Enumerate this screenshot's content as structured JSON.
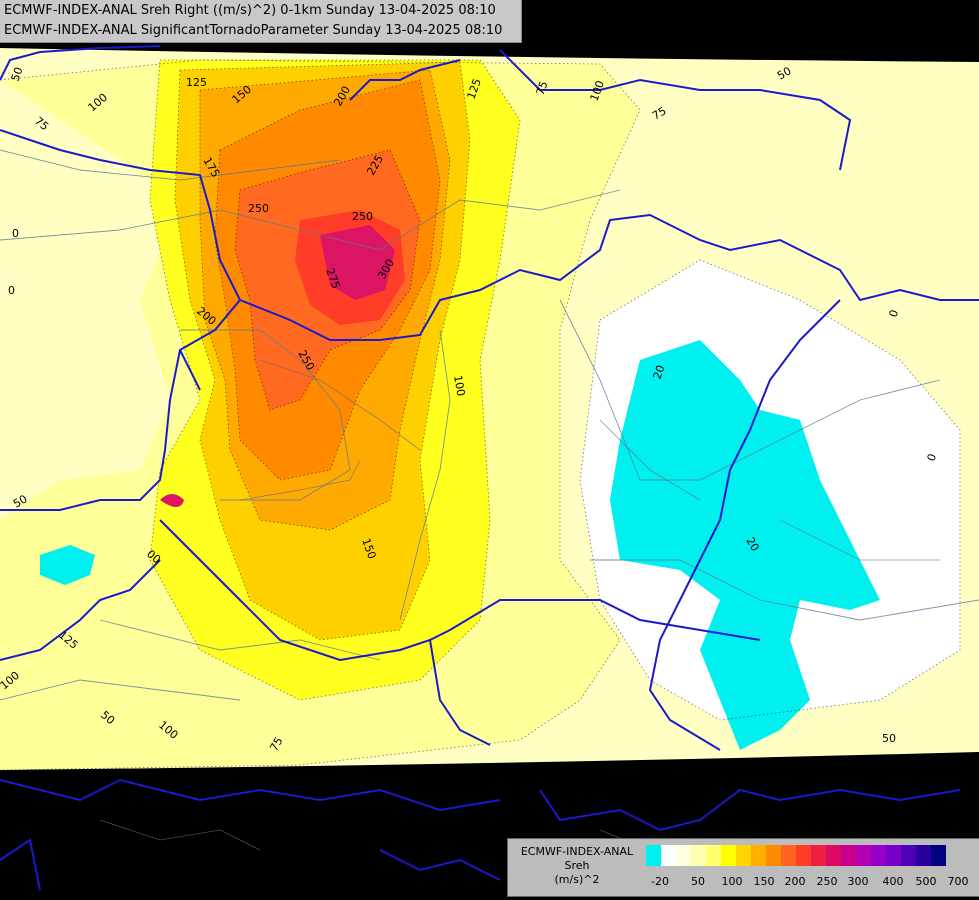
{
  "header": {
    "line1": "ECMWF-INDEX-ANAL Sreh Right ((m/s)^2) 0-1km Sunday 13-04-2025 08:10",
    "line2": "ECMWF-INDEX-ANAL SignificantTornadoParameter Sunday 13-04-2025 08:10"
  },
  "legend": {
    "title1": "ECMWF-INDEX-ANAL",
    "title2": "Sreh",
    "unit": "(m/s)^2",
    "colors": [
      "#00f0f0",
      "#ffffff",
      "#ffffe0",
      "#ffffb0",
      "#ffff70",
      "#ffff00",
      "#ffd400",
      "#ffaf00",
      "#ff8c00",
      "#ff6420",
      "#ff3c28",
      "#f01e40",
      "#dc0a64",
      "#c8008c",
      "#b400b4",
      "#9600c8",
      "#7800c8",
      "#5000b4",
      "#2800a0",
      "#000080"
    ],
    "ticks": [
      "-20",
      "50",
      "100",
      "150",
      "200",
      "250",
      "300",
      "400",
      "500",
      "700"
    ]
  },
  "contour_labels": [
    {
      "text": "50"
    },
    {
      "text": "100"
    },
    {
      "text": "75"
    },
    {
      "text": "125"
    },
    {
      "text": "150"
    },
    {
      "text": "175"
    },
    {
      "text": "200"
    },
    {
      "text": "225"
    },
    {
      "text": "250"
    },
    {
      "text": "250"
    },
    {
      "text": "275"
    },
    {
      "text": "300"
    },
    {
      "text": "200"
    },
    {
      "text": "250"
    },
    {
      "text": "125"
    },
    {
      "text": "75"
    },
    {
      "text": "100"
    },
    {
      "text": "50"
    },
    {
      "text": "75"
    },
    {
      "text": "0"
    },
    {
      "text": "0"
    },
    {
      "text": "100"
    },
    {
      "text": "20"
    },
    {
      "text": "0"
    },
    {
      "text": "0"
    },
    {
      "text": "20"
    },
    {
      "text": "150"
    },
    {
      "text": "50"
    },
    {
      "text": "00"
    },
    {
      "text": "125"
    },
    {
      "text": "100"
    },
    {
      "text": "50"
    },
    {
      "text": "100"
    },
    {
      "text": "75"
    },
    {
      "text": "50"
    }
  ]
}
